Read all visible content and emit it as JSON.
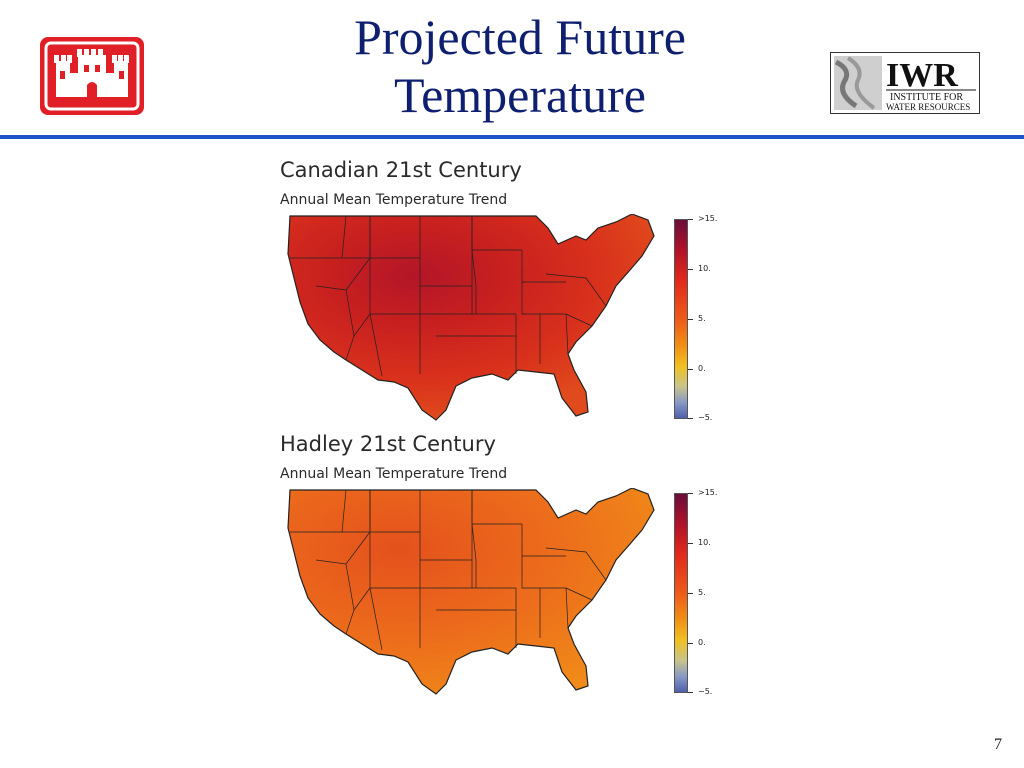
{
  "slide": {
    "title_line1": "Projected Future",
    "title_line2": "Temperature",
    "page_number": "7"
  },
  "logos": {
    "usace": {
      "icon": "castle-icon",
      "color": "#e01f26"
    },
    "iwr": {
      "text": "IWR",
      "subtext_line1": "INSTITUTE FOR",
      "subtext_line2": "WATER RESOURCES"
    }
  },
  "panels": [
    {
      "title": "Canadian 21st Century",
      "subtitle": "Annual Mean Temperature Trend",
      "colorbar_ticks": [
        ">15.",
        "10.",
        "5.",
        "0.",
        "−5."
      ]
    },
    {
      "title": "Hadley 21st Century",
      "subtitle": "Annual Mean Temperature Trend",
      "colorbar_ticks": [
        ">15.",
        "10.",
        "5.",
        "0.",
        "−5."
      ]
    }
  ],
  "colors": {
    "title": "#0d1f6e",
    "rule": "#1d55c6",
    "canadian_map": "#d8301c",
    "hadley_map": "#ec6a1c"
  }
}
